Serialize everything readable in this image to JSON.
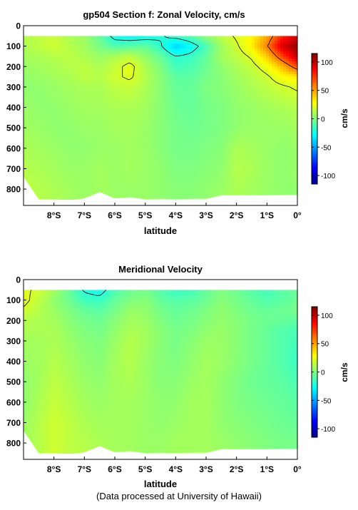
{
  "footer": "(Data processed at University of Hawaii)",
  "colorbar": {
    "unit": "cm/s",
    "ticks": [
      100,
      50,
      0,
      -50,
      -100
    ],
    "range": [
      -115,
      115
    ]
  },
  "chart_data": [
    {
      "type": "heatmap",
      "title": "gp504 Section f: Zonal Velocity, cm/s",
      "xlabel": "latitude",
      "ylabel": "",
      "x_ticks": [
        "8°S",
        "7°S",
        "6°S",
        "5°S",
        "4°S",
        "3°S",
        "2°S",
        "1°S",
        "0°"
      ],
      "x_tick_values": [
        -8,
        -7,
        -6,
        -5,
        -4,
        -3,
        -2,
        -1,
        0
      ],
      "y_ticks": [
        "0",
        "100",
        "200",
        "300",
        "400",
        "500",
        "600",
        "700",
        "800"
      ],
      "y_tick_values": [
        0,
        100,
        200,
        300,
        400,
        500,
        600,
        700,
        800
      ],
      "xlim": [
        -9,
        0
      ],
      "ylim": [
        880,
        0
      ],
      "depth_range": [
        50,
        850
      ],
      "color_range": [
        -115,
        115
      ],
      "grid": false,
      "contour_levels": [
        -20,
        20,
        60
      ],
      "lat": [
        -9.0,
        -8.5,
        -8.0,
        -7.5,
        -7.0,
        -6.5,
        -6.0,
        -5.5,
        -5.0,
        -4.5,
        -4.0,
        -3.5,
        -3.0,
        -2.5,
        -2.0,
        -1.5,
        -1.0,
        -0.5,
        0.0
      ],
      "depth": [
        50,
        100,
        150,
        200,
        250,
        300,
        400,
        500,
        600,
        700,
        800
      ],
      "values": [
        [
          12,
          14,
          16,
          10,
          6,
          -6,
          -26,
          -30,
          -28,
          -22,
          -14,
          -8,
          4,
          14,
          22,
          30,
          48,
          78,
          95
        ],
        [
          10,
          14,
          18,
          12,
          8,
          -2,
          -10,
          -8,
          -6,
          -18,
          -40,
          -28,
          -12,
          8,
          18,
          32,
          58,
          96,
          110
        ],
        [
          8,
          10,
          12,
          14,
          10,
          6,
          10,
          14,
          4,
          -6,
          -20,
          -16,
          -6,
          8,
          14,
          22,
          40,
          72,
          100
        ],
        [
          6,
          8,
          10,
          12,
          14,
          10,
          16,
          24,
          10,
          0,
          -14,
          -12,
          -4,
          4,
          10,
          16,
          26,
          44,
          70
        ],
        [
          4,
          6,
          8,
          10,
          14,
          12,
          18,
          22,
          12,
          2,
          -8,
          -8,
          -2,
          2,
          8,
          12,
          18,
          28,
          34
        ],
        [
          4,
          4,
          6,
          8,
          10,
          10,
          14,
          16,
          10,
          2,
          -6,
          -6,
          0,
          2,
          6,
          10,
          14,
          18,
          22
        ],
        [
          6,
          4,
          4,
          6,
          8,
          8,
          10,
          10,
          8,
          2,
          -4,
          -6,
          -2,
          0,
          4,
          6,
          8,
          10,
          12
        ],
        [
          8,
          6,
          4,
          4,
          6,
          6,
          8,
          8,
          6,
          2,
          -2,
          -4,
          -2,
          0,
          4,
          6,
          6,
          6,
          8
        ],
        [
          10,
          8,
          6,
          4,
          4,
          6,
          6,
          8,
          6,
          2,
          -2,
          -2,
          0,
          2,
          10,
          8,
          6,
          4,
          6
        ],
        [
          12,
          10,
          8,
          6,
          6,
          8,
          6,
          8,
          6,
          4,
          0,
          0,
          2,
          4,
          12,
          10,
          6,
          4,
          6
        ],
        [
          14,
          12,
          10,
          8,
          6,
          8,
          6,
          6,
          6,
          4,
          2,
          2,
          4,
          6,
          10,
          8,
          6,
          4,
          4
        ]
      ],
      "bottom_depth": [
        740,
        850,
        850,
        855,
        845,
        815,
        845,
        840,
        850,
        848,
        850,
        848,
        848,
        830,
        830,
        830,
        830,
        828,
        828
      ]
    },
    {
      "type": "heatmap",
      "title": "Meridional Velocity",
      "xlabel": "latitude",
      "ylabel": "",
      "x_ticks": [
        "8°S",
        "7°S",
        "6°S",
        "5°S",
        "4°S",
        "3°S",
        "2°S",
        "1°S",
        "0°"
      ],
      "x_tick_values": [
        -8,
        -7,
        -6,
        -5,
        -4,
        -3,
        -2,
        -1,
        0
      ],
      "y_ticks": [
        "0",
        "100",
        "200",
        "300",
        "400",
        "500",
        "600",
        "700",
        "800"
      ],
      "y_tick_values": [
        0,
        100,
        200,
        300,
        400,
        500,
        600,
        700,
        800
      ],
      "xlim": [
        -9,
        0
      ],
      "ylim": [
        880,
        0
      ],
      "depth_range": [
        50,
        850
      ],
      "color_range": [
        -115,
        115
      ],
      "grid": false,
      "contour_levels": [
        -20,
        20
      ],
      "lat": [
        -9.0,
        -8.5,
        -8.0,
        -7.5,
        -7.0,
        -6.5,
        -6.0,
        -5.5,
        -5.0,
        -4.5,
        -4.0,
        -3.5,
        -3.0,
        -2.5,
        -2.0,
        -1.5,
        -1.0,
        -0.5,
        0.0
      ],
      "depth": [
        50,
        100,
        150,
        200,
        250,
        300,
        400,
        500,
        600,
        700,
        800
      ],
      "values": [
        [
          22,
          18,
          8,
          -6,
          -22,
          -26,
          -12,
          -4,
          -2,
          -10,
          -16,
          -14,
          -6,
          0,
          -4,
          -10,
          -14,
          -8,
          -6
        ],
        [
          24,
          14,
          4,
          -4,
          -14,
          -16,
          -6,
          0,
          2,
          -6,
          -10,
          -8,
          -4,
          2,
          -2,
          -6,
          -10,
          -8,
          -4
        ],
        [
          18,
          12,
          6,
          0,
          -6,
          -8,
          -2,
          6,
          4,
          -2,
          -6,
          -4,
          0,
          4,
          0,
          -4,
          -6,
          -4,
          -2
        ],
        [
          12,
          10,
          8,
          2,
          -2,
          -4,
          2,
          8,
          6,
          0,
          -4,
          -2,
          2,
          4,
          2,
          -2,
          -4,
          -6,
          -8
        ],
        [
          10,
          10,
          10,
          4,
          0,
          -2,
          4,
          10,
          8,
          2,
          -2,
          0,
          4,
          6,
          2,
          -2,
          -6,
          -10,
          -12
        ],
        [
          8,
          8,
          10,
          6,
          2,
          0,
          6,
          12,
          8,
          2,
          -2,
          2,
          6,
          6,
          2,
          -2,
          -6,
          -10,
          -14
        ],
        [
          6,
          8,
          12,
          8,
          4,
          2,
          8,
          12,
          6,
          2,
          0,
          4,
          8,
          6,
          2,
          -2,
          -6,
          -10,
          -16
        ],
        [
          4,
          8,
          14,
          10,
          6,
          4,
          8,
          10,
          6,
          2,
          2,
          6,
          8,
          4,
          0,
          -4,
          -6,
          -8,
          -12
        ],
        [
          4,
          10,
          16,
          12,
          8,
          6,
          8,
          8,
          6,
          4,
          4,
          8,
          8,
          4,
          0,
          -2,
          -4,
          -6,
          -8
        ],
        [
          6,
          12,
          18,
          14,
          10,
          8,
          8,
          8,
          6,
          4,
          6,
          8,
          8,
          4,
          2,
          0,
          -2,
          -4,
          -6
        ],
        [
          8,
          12,
          18,
          14,
          12,
          10,
          8,
          8,
          6,
          6,
          8,
          8,
          8,
          6,
          4,
          2,
          0,
          -2,
          -2
        ]
      ],
      "bottom_depth": [
        740,
        850,
        850,
        855,
        845,
        815,
        845,
        840,
        850,
        848,
        850,
        848,
        848,
        830,
        830,
        830,
        830,
        828,
        828
      ]
    }
  ]
}
